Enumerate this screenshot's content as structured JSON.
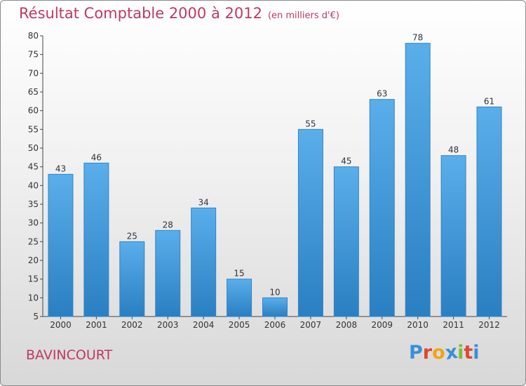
{
  "title": "Résultat Comptable 2000 à 2012",
  "subtitle": "(en milliers d'€)",
  "commune": "BAVINCOURT",
  "logo": {
    "letters": [
      "P",
      "r",
      "o",
      "x",
      "i",
      "t",
      "i"
    ],
    "colors": [
      "#3a8fd8",
      "#e2462f",
      "#f2a316",
      "#3a8fd8",
      "#7bbd3a",
      "#e2462f",
      "#3a8fd8"
    ]
  },
  "colors": {
    "bar_top": "#5aaeea",
    "bar_bottom": "#2a7fc2",
    "title": "#c0395f"
  },
  "chart_data": {
    "type": "bar",
    "categories": [
      "2000",
      "2001",
      "2002",
      "2003",
      "2004",
      "2005",
      "2006",
      "2007",
      "2008",
      "2009",
      "2010",
      "2011",
      "2012"
    ],
    "values": [
      43,
      46,
      25,
      28,
      34,
      15,
      10,
      55,
      45,
      63,
      78,
      48,
      61
    ],
    "ylim": [
      5,
      80
    ],
    "yticks": [
      5,
      10,
      15,
      20,
      25,
      30,
      35,
      40,
      45,
      50,
      55,
      60,
      65,
      70,
      75,
      80
    ],
    "grid": false,
    "xlabel": "",
    "ylabel": ""
  }
}
